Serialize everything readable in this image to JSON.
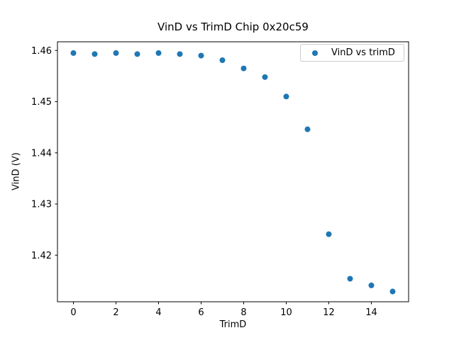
{
  "figure": {
    "background": "#ffffff",
    "text_color": "#000000"
  },
  "chart_data": {
    "type": "scatter",
    "title": "VinD vs TrimD Chip 0x20c59",
    "xlabel": "TrimD",
    "ylabel": "VinD (V)",
    "legend": {
      "position": "upper right",
      "entries": [
        "VinD vs trimD"
      ],
      "border_color": "#cccccc",
      "background": "#ffffff"
    },
    "grid": false,
    "spine_color": "#000000",
    "xlim": [
      -0.75,
      15.75
    ],
    "ylim": [
      1.4109,
      1.4617
    ],
    "xticks": [
      0,
      2,
      4,
      6,
      8,
      10,
      12,
      14
    ],
    "xtick_labels": [
      "0",
      "2",
      "4",
      "6",
      "8",
      "10",
      "12",
      "14"
    ],
    "yticks": [
      1.42,
      1.43,
      1.44,
      1.45,
      1.46
    ],
    "ytick_labels": [
      "1.42",
      "1.43",
      "1.44",
      "1.45",
      "1.46"
    ],
    "series": [
      {
        "name": "VinD vs trimD",
        "marker": "circle",
        "marker_radius_px": 4,
        "color": "#1f77b4",
        "x": [
          0,
          1,
          2,
          3,
          4,
          5,
          6,
          7,
          8,
          9,
          10,
          11,
          12,
          13,
          14,
          15
        ],
        "y": [
          1.4595,
          1.4593,
          1.4595,
          1.4593,
          1.4595,
          1.4593,
          1.459,
          1.4581,
          1.4565,
          1.4548,
          1.451,
          1.4446,
          1.4241,
          1.4154,
          1.4141,
          1.4129
        ]
      }
    ]
  }
}
